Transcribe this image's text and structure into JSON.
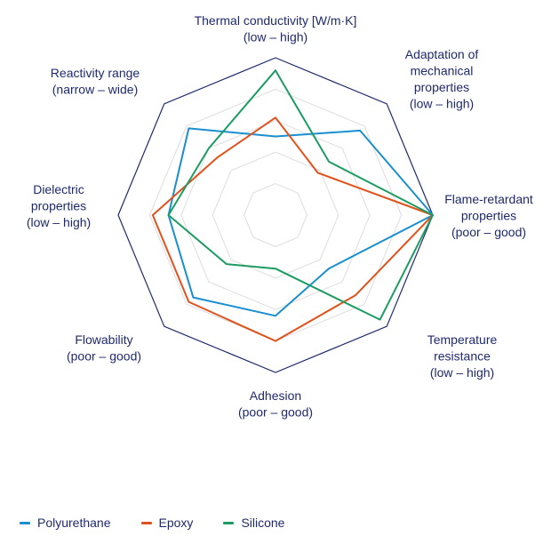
{
  "chart_data": {
    "type": "radar",
    "title": "",
    "axes": [
      [
        "Thermal conductivity [W/m·K]",
        "(low – high)"
      ],
      [
        "Adaptation of",
        "mechanical",
        "properties",
        "(low – high)"
      ],
      [
        "Flame-retardant",
        "properties",
        "(poor – good)"
      ],
      [
        "Temperature",
        "resistance",
        "(low – high)"
      ],
      [
        "Adhesion",
        "(poor – good)"
      ],
      [
        "Flowability",
        "(poor – good)"
      ],
      [
        "Dielectric",
        "properties",
        "(low – high)"
      ],
      [
        "Reactivity range",
        "(narrow – wide)"
      ]
    ],
    "scale_max": 5,
    "rings": [
      1,
      2,
      3,
      4,
      5
    ],
    "grid": true,
    "legend_position": "bottom-left",
    "series": [
      {
        "name": "Polyurethane",
        "color": "#1a8fcf",
        "values": [
          2.5,
          3.8,
          5.0,
          2.4,
          3.2,
          3.7,
          3.4,
          3.9
        ]
      },
      {
        "name": "Epoxy",
        "color": "#e0521c",
        "values": [
          3.1,
          1.9,
          5.0,
          3.6,
          4.0,
          3.9,
          3.9,
          2.6
        ]
      },
      {
        "name": "Silicone",
        "color": "#1c9c63",
        "values": [
          4.6,
          2.4,
          5.0,
          4.7,
          1.7,
          2.2,
          3.4,
          3.0
        ]
      }
    ],
    "outline_color": "#1f2a6e",
    "grid_color": "#dddddd"
  }
}
